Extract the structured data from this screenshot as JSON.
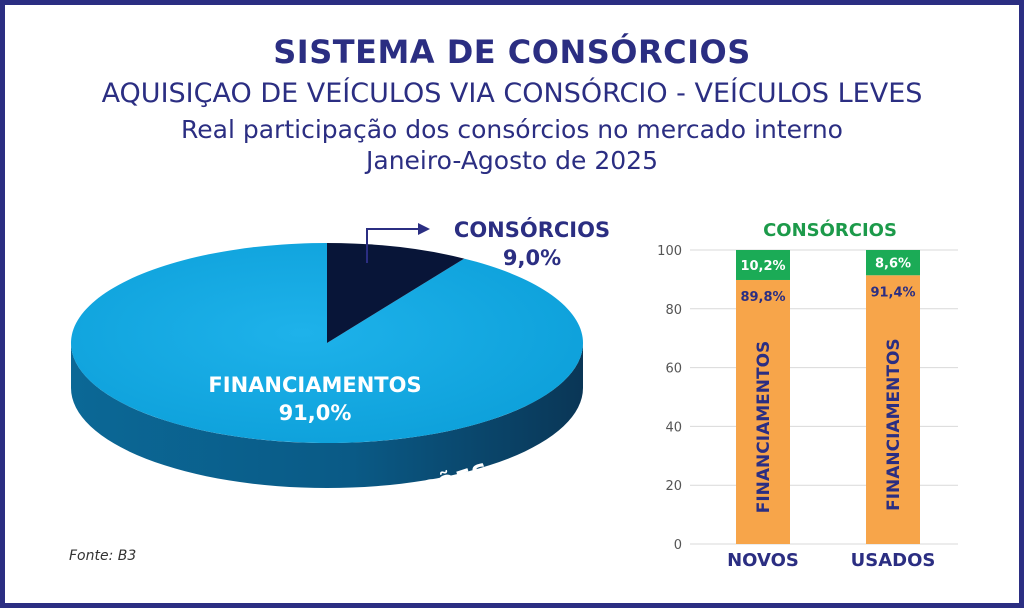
{
  "title": "SISTEMA DE CONSÓRCIOS",
  "subtitle1": "AQUISIÇAO DE VEÍCULOS VIA CONSÓRCIO - VEÍCULOS LEVES",
  "subtitle2": "Real participação dos consórcios no mercado interno",
  "subtitle3": "Janeiro-Agosto de 2025",
  "source": "Fonte: B3",
  "colors": {
    "navy": "#2b2e82",
    "pie_dark": "#081538",
    "pie_light": "#11a6e0",
    "pie_side": "#0c6f9e",
    "bar_orange": "#f7a54a",
    "bar_green": "#1bab56",
    "green_text": "#1c9a4a"
  },
  "chart_data": [
    {
      "type": "pie",
      "slices": [
        {
          "label": "CONSÓRCIOS",
          "value_label": "9,0%",
          "value": 9.0
        },
        {
          "label": "FINANCIAMENTOS",
          "value_label": "91,0%",
          "value": 91.0
        }
      ],
      "base_label": "TOTAL DAS AQUISIÇÕES"
    },
    {
      "type": "bar",
      "stacked": true,
      "title": "CONSÓRCIOS",
      "categories": [
        "NOVOS",
        "USADOS"
      ],
      "series": [
        {
          "name": "FINANCIAMENTOS",
          "values": [
            89.8,
            91.4
          ],
          "labels": [
            "89,8%",
            "91,4%"
          ]
        },
        {
          "name": "CONSÓRCIOS",
          "values": [
            10.2,
            8.6
          ],
          "labels": [
            "10,2%",
            "8,6%"
          ]
        }
      ],
      "yticks": [
        "0",
        "20",
        "40",
        "60",
        "80",
        "100"
      ],
      "ylim": [
        0,
        100
      ],
      "grid": true
    }
  ]
}
